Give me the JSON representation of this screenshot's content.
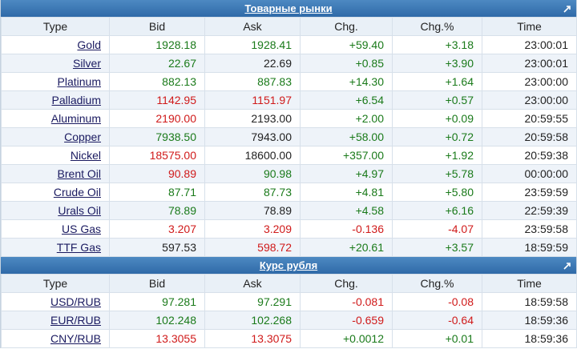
{
  "commodities": {
    "title": "Товарные рынки",
    "columns": [
      "Type",
      "Bid",
      "Ask",
      "Chg.",
      "Chg.%",
      "Time"
    ],
    "rows": [
      {
        "name": "Gold",
        "bid": "1928.18",
        "bid_c": "up",
        "ask": "1928.41",
        "ask_c": "up",
        "chg": "+59.40",
        "pct": "+3.18",
        "time": "23:00:01"
      },
      {
        "name": "Silver",
        "bid": "22.67",
        "bid_c": "up",
        "ask": "22.69",
        "ask_c": "neutral",
        "chg": "+0.85",
        "pct": "+3.90",
        "time": "23:00:01"
      },
      {
        "name": "Platinum",
        "bid": "882.13",
        "bid_c": "up",
        "ask": "887.83",
        "ask_c": "up",
        "chg": "+14.30",
        "pct": "+1.64",
        "time": "23:00:00"
      },
      {
        "name": "Palladium",
        "bid": "1142.95",
        "bid_c": "down",
        "ask": "1151.97",
        "ask_c": "down",
        "chg": "+6.54",
        "pct": "+0.57",
        "time": "23:00:00"
      },
      {
        "name": "Aluminum",
        "bid": "2190.00",
        "bid_c": "down",
        "ask": "2193.00",
        "ask_c": "neutral",
        "chg": "+2.00",
        "pct": "+0.09",
        "time": "20:59:55"
      },
      {
        "name": "Copper",
        "bid": "7938.50",
        "bid_c": "up",
        "ask": "7943.00",
        "ask_c": "neutral",
        "chg": "+58.00",
        "pct": "+0.72",
        "time": "20:59:58"
      },
      {
        "name": "Nickel",
        "bid": "18575.00",
        "bid_c": "down",
        "ask": "18600.00",
        "ask_c": "neutral",
        "chg": "+357.00",
        "pct": "+1.92",
        "time": "20:59:38"
      },
      {
        "name": "Brent Oil",
        "bid": "90.89",
        "bid_c": "down",
        "ask": "90.98",
        "ask_c": "up",
        "chg": "+4.97",
        "pct": "+5.78",
        "time": "00:00:00"
      },
      {
        "name": "Crude Oil",
        "bid": "87.71",
        "bid_c": "up",
        "ask": "87.73",
        "ask_c": "up",
        "chg": "+4.81",
        "pct": "+5.80",
        "time": "23:59:59"
      },
      {
        "name": "Urals Oil",
        "bid": "78.89",
        "bid_c": "up",
        "ask": "78.89",
        "ask_c": "neutral",
        "chg": "+4.58",
        "pct": "+6.16",
        "time": "22:59:39"
      },
      {
        "name": "US Gas",
        "bid": "3.207",
        "bid_c": "down",
        "ask": "3.209",
        "ask_c": "down",
        "chg": "-0.136",
        "pct": "-4.07",
        "time": "23:59:58"
      },
      {
        "name": "TTF Gas",
        "bid": "597.53",
        "bid_c": "neutral",
        "ask": "598.72",
        "ask_c": "down",
        "chg": "+20.61",
        "pct": "+3.57",
        "time": "18:59:59"
      }
    ]
  },
  "ruble": {
    "title": "Курс рубля",
    "columns": [
      "Type",
      "Bid",
      "Ask",
      "Chg.",
      "Chg.%",
      "Time"
    ],
    "rows": [
      {
        "name": "USD/RUB",
        "bid": "97.281",
        "bid_c": "up",
        "ask": "97.291",
        "ask_c": "up",
        "chg": "-0.081",
        "pct": "-0.08",
        "time": "18:59:58"
      },
      {
        "name": "EUR/RUB",
        "bid": "102.248",
        "bid_c": "up",
        "ask": "102.268",
        "ask_c": "up",
        "chg": "-0.659",
        "pct": "-0.64",
        "time": "18:59:36"
      },
      {
        "name": "CNY/RUB",
        "bid": "13.3055",
        "bid_c": "down",
        "ask": "13.3075",
        "ask_c": "down",
        "chg": "+0.0012",
        "pct": "+0.01",
        "time": "18:59:36"
      }
    ]
  },
  "icons": {
    "expand": "expand-arrow-icon"
  },
  "colors": {
    "up": "#1a7a1a",
    "down": "#d01a1a",
    "header": "#2f6aa8"
  }
}
